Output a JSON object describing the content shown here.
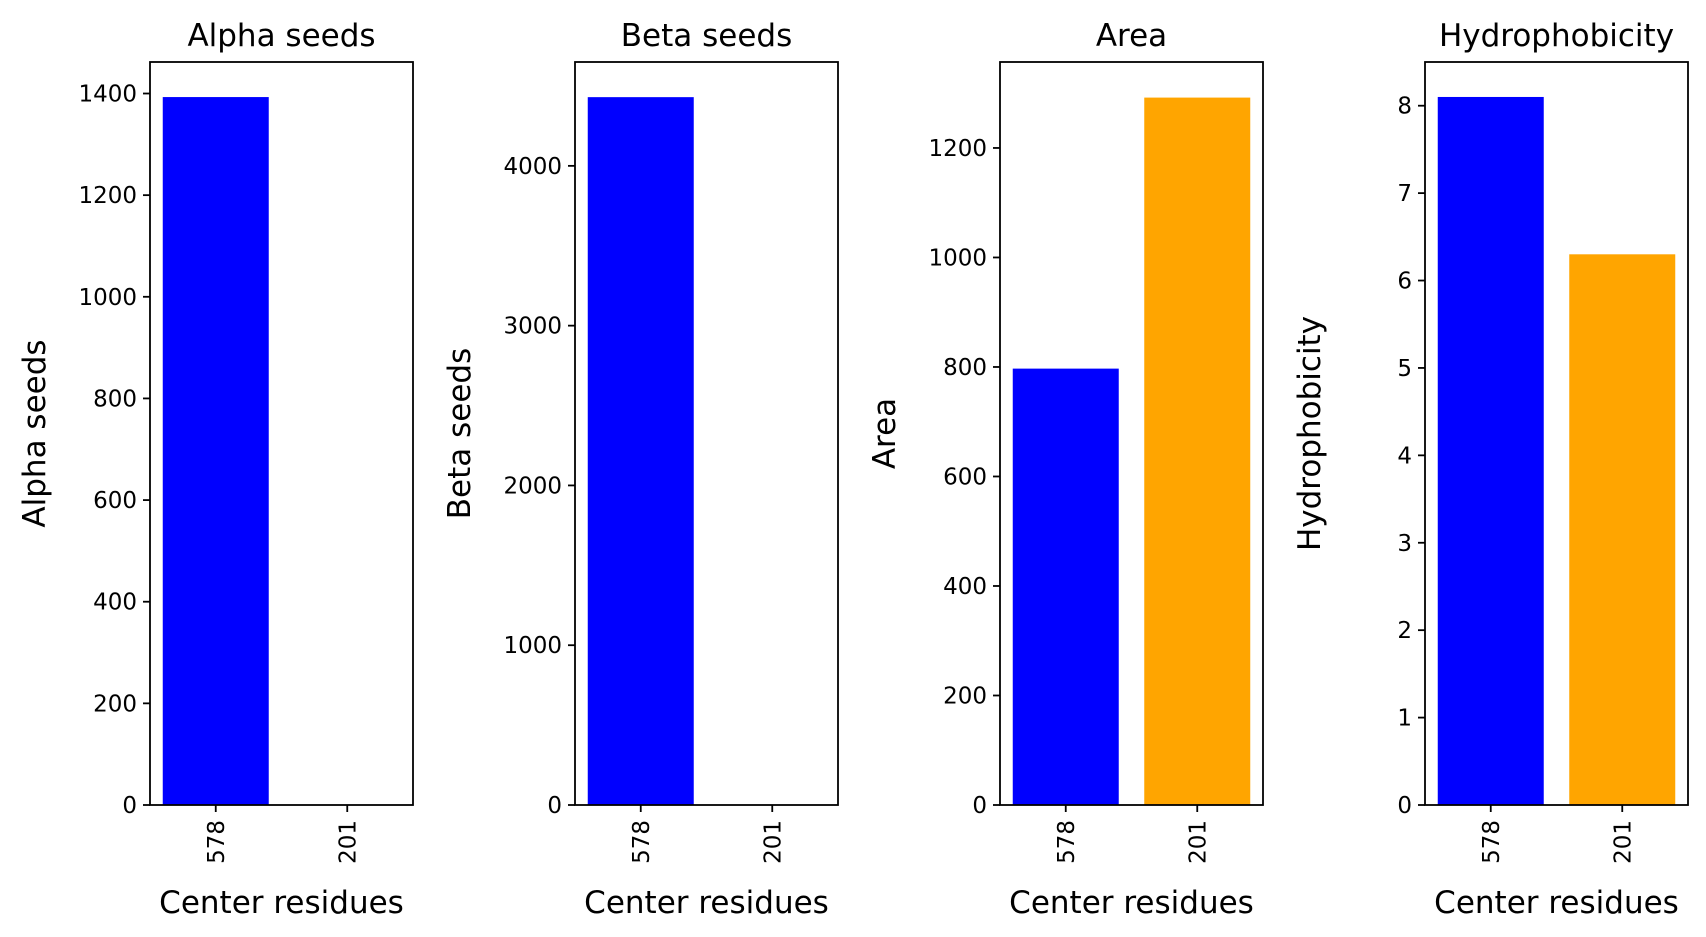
{
  "chart_data": [
    {
      "type": "bar",
      "title": "Alpha seeds",
      "xlabel": "Center residues",
      "ylabel": "Alpha seeds",
      "categories": [
        "578",
        "201"
      ],
      "values": [
        1393,
        0
      ],
      "colors": [
        "#0000ff",
        "#ffa500"
      ],
      "ylim": [
        0,
        1462
      ],
      "yticks": [
        0,
        200,
        400,
        600,
        800,
        1000,
        1200,
        1400
      ],
      "grid": false
    },
    {
      "type": "bar",
      "title": "Beta seeds",
      "xlabel": "Center residues",
      "ylabel": "Beta seeds",
      "categories": [
        "578",
        "201"
      ],
      "values": [
        4430,
        0
      ],
      "colors": [
        "#0000ff",
        "#ffa500"
      ],
      "ylim": [
        0,
        4650
      ],
      "yticks": [
        0,
        1000,
        2000,
        3000,
        4000
      ],
      "grid": false
    },
    {
      "type": "bar",
      "title": "Area",
      "xlabel": "Center residues",
      "ylabel": "Area",
      "categories": [
        "578",
        "201"
      ],
      "values": [
        797,
        1292
      ],
      "colors": [
        "#0000ff",
        "#ffa500"
      ],
      "ylim": [
        0,
        1357
      ],
      "yticks": [
        0,
        200,
        400,
        600,
        800,
        1000,
        1200
      ],
      "grid": false
    },
    {
      "type": "bar",
      "title": "Hydrophobicity",
      "xlabel": "Center residues",
      "ylabel": "Hydrophobicity",
      "categories": [
        "578",
        "201"
      ],
      "values": [
        8.1,
        6.3
      ],
      "colors": [
        "#0000ff",
        "#ffa500"
      ],
      "ylim": [
        0,
        8.5
      ],
      "yticks": [
        0,
        1,
        2,
        3,
        4,
        5,
        6,
        7,
        8
      ],
      "grid": false
    }
  ]
}
